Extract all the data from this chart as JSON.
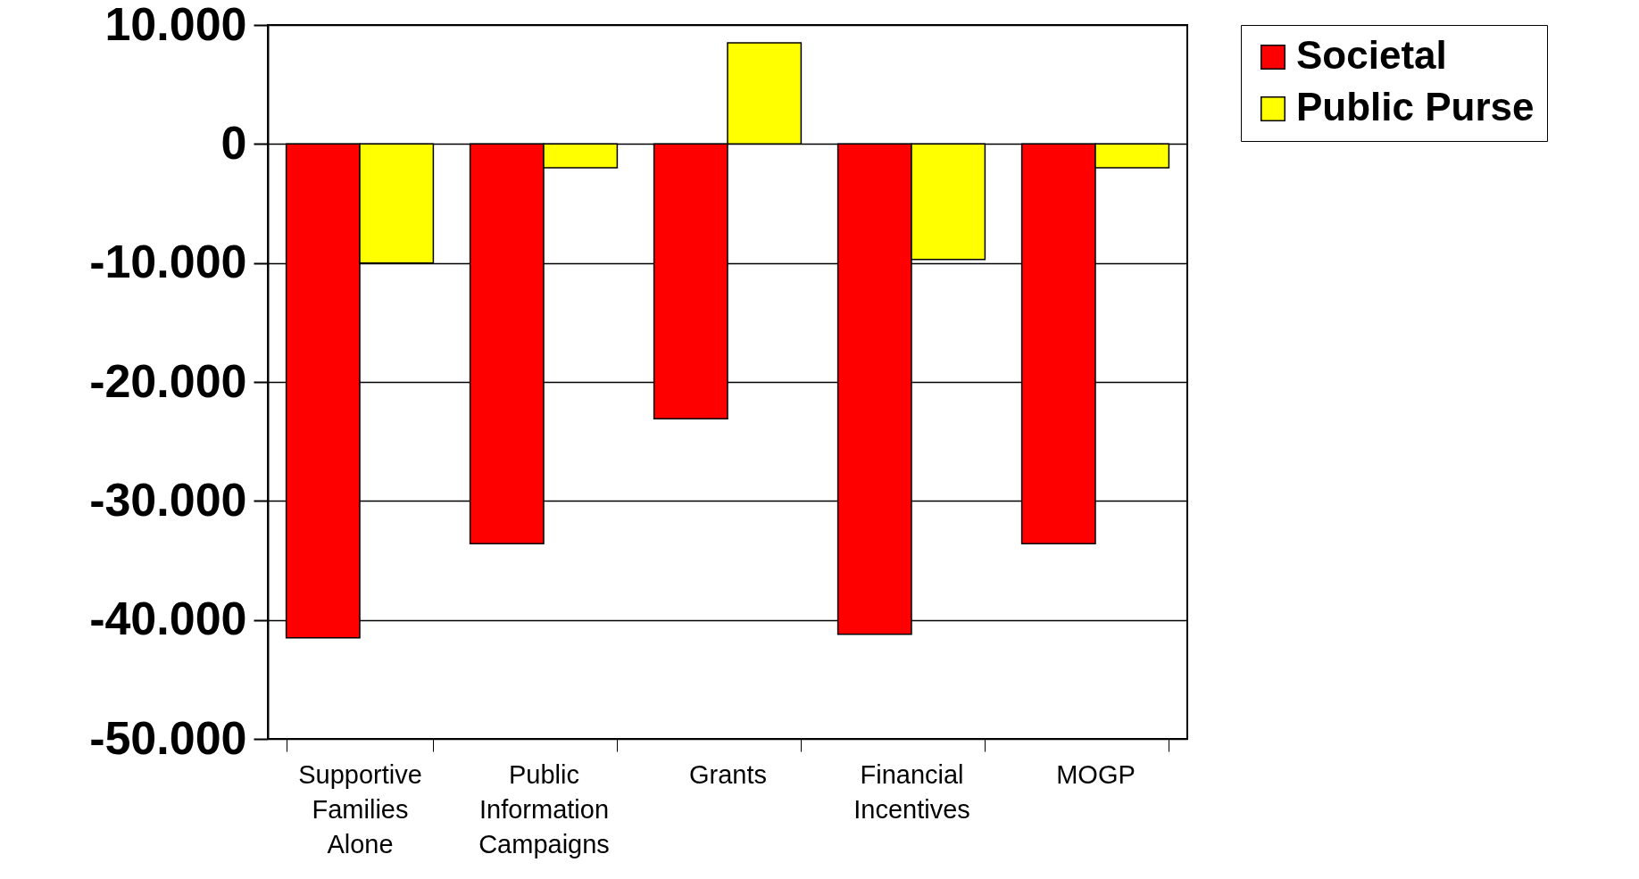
{
  "chart_data": {
    "type": "bar",
    "categories": [
      "Supportive Families Alone",
      "Public Information Campaigns",
      "Grants",
      "Financial Incentives",
      "MOGP"
    ],
    "series": [
      {
        "name": "Societal",
        "color": "#ff0000",
        "values": [
          -41500,
          -33600,
          -23100,
          -41200,
          -33600
        ]
      },
      {
        "name": "Public Purse",
        "color": "#ffff00",
        "values": [
          -10000,
          -2000,
          8500,
          -9700,
          -2000
        ]
      }
    ],
    "ylim": [
      -50000,
      10000
    ],
    "yticks": [
      {
        "value": -50000,
        "label": "-50.000"
      },
      {
        "value": -40000,
        "label": "-40.000"
      },
      {
        "value": -30000,
        "label": "-30.000"
      },
      {
        "value": -20000,
        "label": "-20.000"
      },
      {
        "value": -10000,
        "label": "-10.000"
      },
      0,
      {
        "value": 10000,
        "label": "10.000"
      }
    ],
    "grid": "y",
    "legend": "right"
  }
}
